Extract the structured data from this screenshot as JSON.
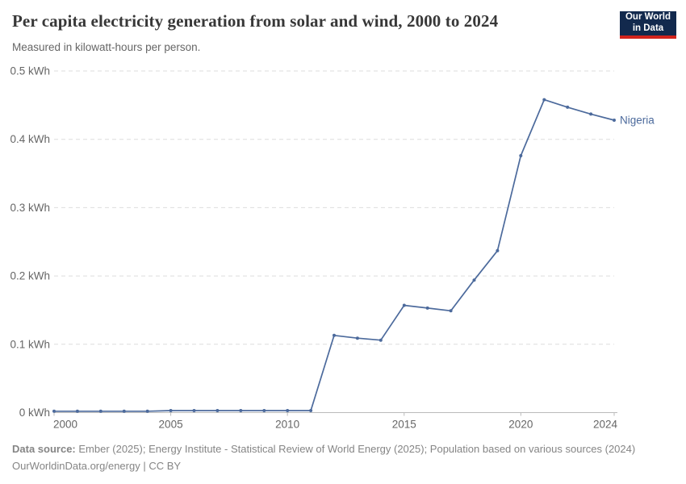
{
  "header": {
    "title": "Per capita electricity generation from solar and wind, 2000 to 2024",
    "subtitle": "Measured in kilowatt-hours per person.",
    "logo": {
      "line1": "Our World",
      "line2": "in Data"
    }
  },
  "chart_data": {
    "type": "line",
    "title": "Per capita electricity generation from solar and wind, 2000 to 2024",
    "ylabel": "kilowatt-hours per person",
    "unit": "kWh",
    "xlim": [
      2000,
      2024
    ],
    "ylim": [
      0,
      0.5
    ],
    "grid": "horizontal-dashed",
    "legend_position": "line-end-label",
    "x_ticks": [
      "2000",
      "2005",
      "2010",
      "2015",
      "2020",
      "2024"
    ],
    "x_tick_values": [
      2000,
      2005,
      2010,
      2015,
      2020,
      2024
    ],
    "y_ticks": [
      {
        "value": 0,
        "label": "0 kWh"
      },
      {
        "value": 0.1,
        "label": "0.1 kWh"
      },
      {
        "value": 0.2,
        "label": "0.2 kWh"
      },
      {
        "value": 0.3,
        "label": "0.3 kWh"
      },
      {
        "value": 0.4,
        "label": "0.4 kWh"
      },
      {
        "value": 0.5,
        "label": "0.5 kWh"
      }
    ],
    "series": [
      {
        "name": "Nigeria",
        "color": "#4c6a9c",
        "x": [
          2000,
          2001,
          2002,
          2003,
          2004,
          2005,
          2006,
          2007,
          2008,
          2009,
          2010,
          2011,
          2012,
          2013,
          2014,
          2015,
          2016,
          2017,
          2018,
          2019,
          2020,
          2021,
          2022,
          2023,
          2024
        ],
        "values": [
          0.002,
          0.002,
          0.002,
          0.002,
          0.002,
          0.003,
          0.003,
          0.003,
          0.003,
          0.003,
          0.003,
          0.003,
          0.113,
          0.109,
          0.106,
          0.157,
          0.153,
          0.149,
          0.194,
          0.237,
          0.376,
          0.458,
          0.447,
          0.437,
          0.428
        ]
      }
    ]
  },
  "footer": {
    "datasource_label": "Data source:",
    "datasource_text": " Ember (2025); Energy Institute - Statistical Review of World Energy (2025); Population based on various sources (2024)",
    "license_line": "OurWorldinData.org/energy | CC BY"
  },
  "colors": {
    "line": "#4c6a9c",
    "title_text": "#383838",
    "subtitle_text": "#666666",
    "axis_text": "#666666",
    "gridline": "#dddddd",
    "axis_line": "#bbbbbb",
    "footer_text": "#858585",
    "logo_bg": "#12294d",
    "logo_accent": "#d2231c"
  }
}
